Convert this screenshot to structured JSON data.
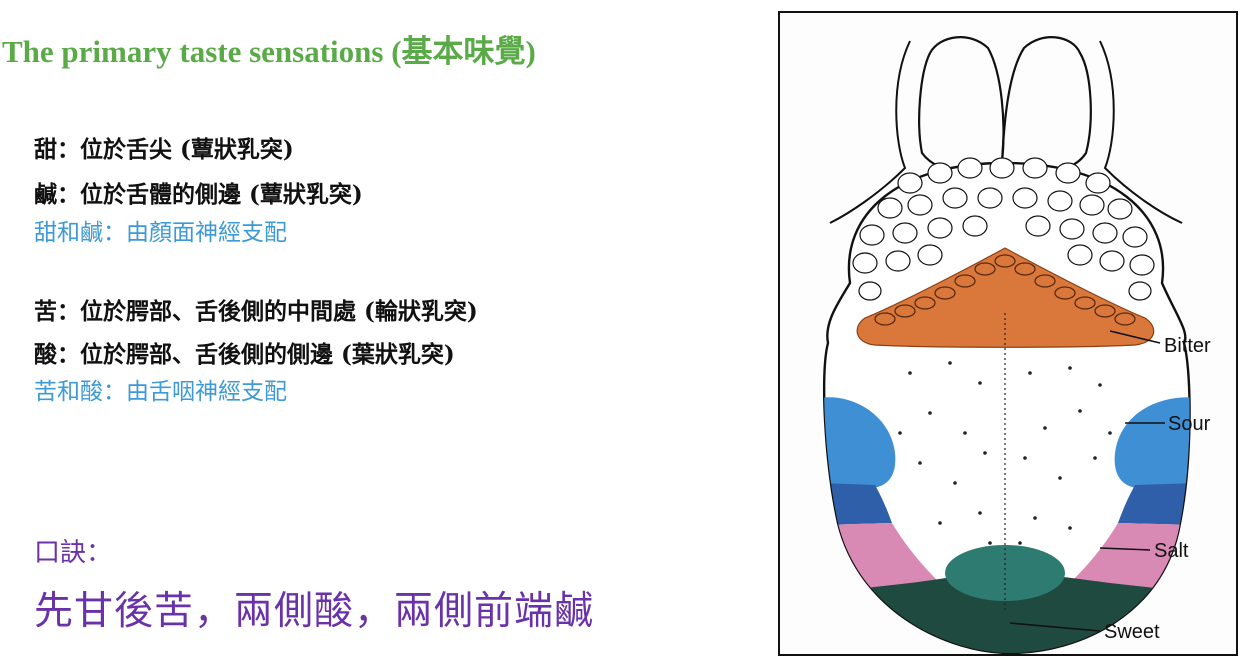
{
  "title": "The primary taste sensations (基本味覺)",
  "colors": {
    "title": "#5aab48",
    "note": "#3d9ad6",
    "mnemonic": "#6a32a8",
    "bitter_zone": "#d9783a",
    "sour_zone": "#3f8fd4",
    "salt_zone": "#d889b4",
    "sweet_zone": "#1f4a3f"
  },
  "facts": {
    "sweet_line": "甜：位於舌尖 (蕈狀乳突)",
    "salty_line": "鹹：位於舌體的側邊 (蕈狀乳突)",
    "sweet_salty_nerve": "甜和鹹：由顏面神經支配",
    "bitter_line": "苦：位於腭部、舌後側的中間處 (輪狀乳突)",
    "sour_line": "酸：位於腭部、舌後側的側邊 (葉狀乳突)",
    "bitter_sour_nerve": "苦和酸：由舌咽神經支配"
  },
  "mnemonic": {
    "label": "口訣：",
    "text": "先甘後苦，兩側酸，兩側前端鹹"
  },
  "diagram": {
    "labels": {
      "bitter": "Bitter",
      "sour": "Sour",
      "salt": "Salt",
      "sweet": "Sweet"
    }
  }
}
